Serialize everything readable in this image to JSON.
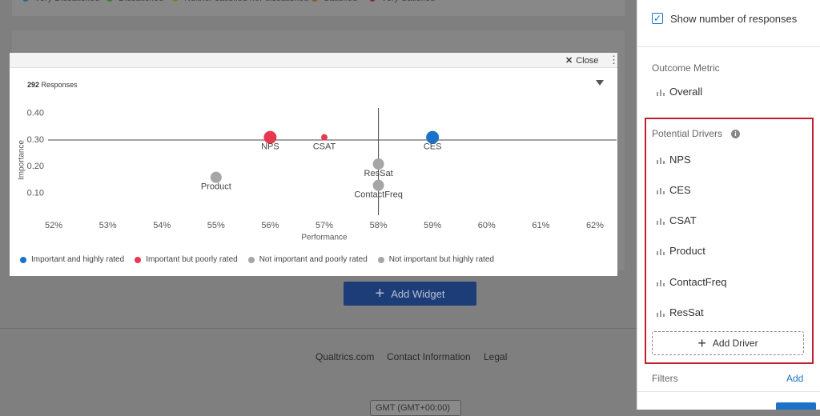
{
  "background": {
    "top_legend": [
      {
        "name": "Very Dissatisfied",
        "color": "#1b6f7f"
      },
      {
        "name": "Dissatisfied",
        "color": "#3f7a3a"
      },
      {
        "name": "Neither satisfied nor dissatisfied",
        "color": "#7f7f2a"
      },
      {
        "name": "Satisfied",
        "color": "#8a5a1a"
      },
      {
        "name": "Very Satisfied",
        "color": "#8a2a32"
      }
    ],
    "add_widget": "Add Widget",
    "footer_links": [
      "Qualtrics.com",
      "Contact Information",
      "Legal"
    ],
    "timezone": "GMT (GMT+00:00)"
  },
  "modal": {
    "close": "Close",
    "responses_count": 292,
    "responses_label": "Responses"
  },
  "chart_data": {
    "type": "scatter",
    "x_label": "Performance",
    "y_label": "Importance",
    "labels": [
      "NPS",
      "CSAT",
      "CES",
      "ResSat",
      "ContactFreq",
      "Product"
    ],
    "x": [
      56,
      57,
      59,
      58,
      58,
      55
    ],
    "y": [
      0.31,
      0.31,
      0.31,
      0.21,
      0.13,
      0.16
    ],
    "sizes": [
      8,
      4,
      8,
      7,
      7,
      7
    ],
    "colors": [
      "#e8384f",
      "#e8384f",
      "#1a73c8",
      "#a6a6a6",
      "#a6a6a6",
      "#a6a6a6"
    ],
    "xlim": [
      51.6,
      62.4
    ],
    "ylim": [
      0.03,
      0.42
    ],
    "xticks": [
      {
        "value": 52,
        "label": "52%"
      },
      {
        "value": 53,
        "label": "53%"
      },
      {
        "value": 54,
        "label": "54%"
      },
      {
        "value": 55,
        "label": "55%"
      },
      {
        "value": 56,
        "label": "56%"
      },
      {
        "value": 57,
        "label": "57%"
      },
      {
        "value": 58,
        "label": "58%"
      },
      {
        "value": 59,
        "label": "59%"
      },
      {
        "value": 60,
        "label": "60%"
      },
      {
        "value": 61,
        "label": "61%"
      },
      {
        "value": 62,
        "label": "62%"
      }
    ],
    "yticks": [
      {
        "value": 0.1,
        "label": "0.10"
      },
      {
        "value": 0.2,
        "label": "0.20"
      },
      {
        "value": 0.3,
        "label": "0.30"
      },
      {
        "value": 0.4,
        "label": "0.40"
      }
    ],
    "reference_lines": {
      "x": 58,
      "y": 0.3
    },
    "legend": [
      {
        "name": "Important and highly rated",
        "color": "#1a73c8"
      },
      {
        "name": "Important but poorly rated",
        "color": "#e8384f"
      },
      {
        "name": "Not important and poorly rated",
        "color": "#a6a6a6"
      },
      {
        "name": "Not important but highly rated",
        "color": "#a6a6a6"
      }
    ]
  },
  "sidebar": {
    "show_responses": "Show number of responses",
    "outcome_metric": "Outcome Metric",
    "outcome_value": "Overall",
    "potential_drivers": "Potential Drivers",
    "drivers": [
      "NPS",
      "CES",
      "CSAT",
      "Product",
      "ContactFreq",
      "ResSat"
    ],
    "add_driver": "Add Driver",
    "filters": "Filters",
    "add": "Add"
  }
}
